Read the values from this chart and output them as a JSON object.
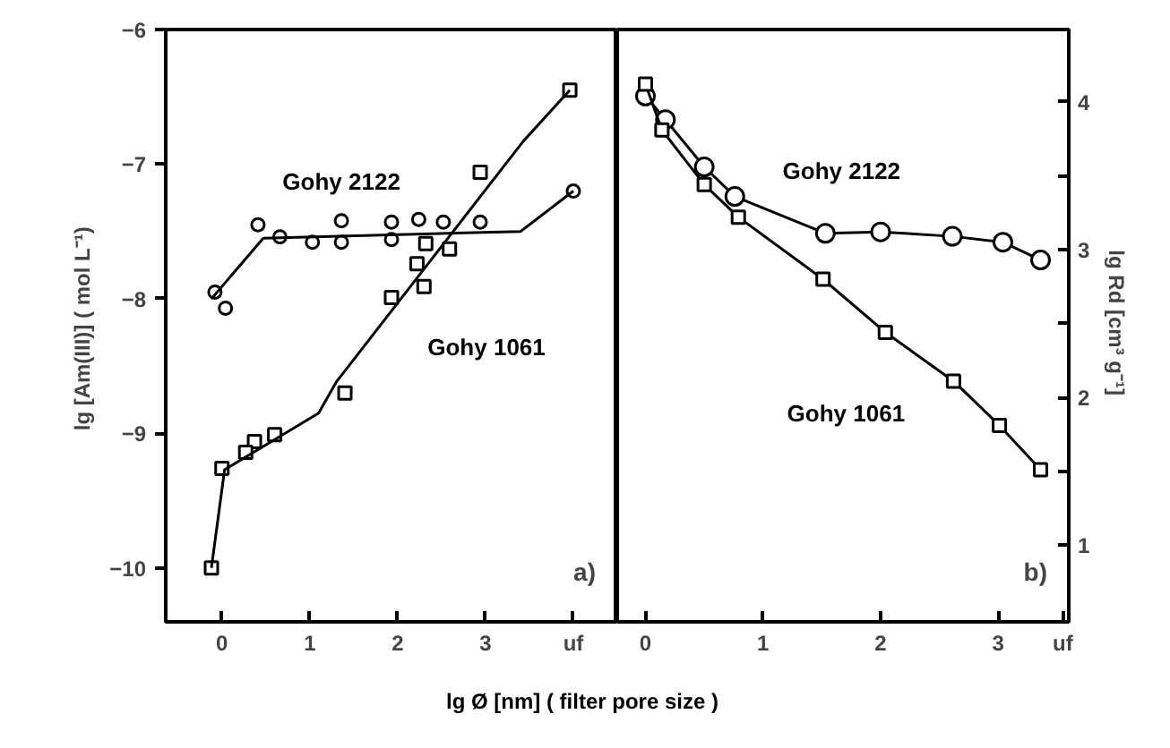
{
  "chart_data": [
    {
      "type": "scatter",
      "ylabel": "lg [Am(III)]  ( mol L⁻¹)",
      "xlabel": "lg Ø  [nm]   ( filter pore size )",
      "xlim": [
        -0.64,
        4.5
      ],
      "xticks": [
        0,
        1,
        2,
        3,
        {
          "value": 4,
          "label": "uf"
        }
      ],
      "ylim": [
        -10.4,
        -6.0
      ],
      "yticks": [
        -10,
        -9,
        -8,
        -7,
        -6
      ],
      "grid": false,
      "annotations": [
        "a)"
      ],
      "series": [
        {
          "name": "Gohy 2122",
          "color": "#000000",
          "marker": "circle",
          "x": [
            -0.08,
            0.04,
            0.41,
            0.66,
            1.03,
            1.36,
            1.36,
            1.93,
            1.93,
            2.24,
            2.52,
            2.94,
            4.0
          ],
          "values": [
            -7.95,
            -8.07,
            -7.45,
            -7.54,
            -7.58,
            -7.42,
            -7.58,
            -7.43,
            -7.56,
            -7.41,
            -7.43,
            -7.43,
            -7.2
          ]
        },
        {
          "name": "Gohy 1061",
          "color": "#000000",
          "marker": "square",
          "x": [
            3.96,
            2.94,
            2.32,
            2.59,
            2.22,
            2.3,
            1.93,
            1.4,
            0.6,
            0.37,
            0.27,
            0.0,
            -0.12
          ],
          "values": [
            -6.45,
            -7.06,
            -7.59,
            -7.63,
            -7.74,
            -7.91,
            -7.99,
            -8.7,
            -9.01,
            -9.06,
            -9.14,
            -9.26,
            -10.0
          ]
        },
        {
          "type": "line",
          "color": "#000000",
          "marker": "none",
          "x": [
            -0.12,
            0.47,
            3.4,
            4.0
          ],
          "values": [
            -8.0,
            -7.55,
            -7.5,
            -7.2
          ]
        },
        {
          "type": "line",
          "color": "#000000",
          "marker": "none",
          "x": [
            -0.12,
            0.03,
            1.1,
            1.3,
            3.43,
            3.96
          ],
          "values": [
            -10.0,
            -9.27,
            -8.85,
            -8.62,
            -6.83,
            -6.45
          ]
        }
      ]
    },
    {
      "type": "line",
      "y2label": "lg Rd  [cm³ g⁻¹]",
      "xlim": [
        -0.24,
        3.6
      ],
      "xticks": [
        0,
        1,
        2,
        3,
        {
          "value": 3.55,
          "label": "uf"
        }
      ],
      "y2lim": [
        0.48,
        4.49
      ],
      "y2ticks": [
        1,
        {
          "value": 1.5,
          "label": null
        },
        2,
        {
          "value": 2.5,
          "label": null
        },
        3,
        {
          "value": 3.5,
          "label": null
        },
        4
      ],
      "grid": false,
      "annotations": [
        "b)"
      ],
      "series": [
        {
          "name": "Gohy 2122",
          "color": "#000000",
          "marker": "circle",
          "axis": "y2",
          "x": [
            0.0,
            0.17,
            0.5,
            0.76,
            1.53,
            2.0,
            2.61,
            3.04,
            3.36
          ],
          "values": [
            4.04,
            3.88,
            3.56,
            3.36,
            3.11,
            3.12,
            3.09,
            3.05,
            2.93
          ]
        },
        {
          "name": "Gohy 1061",
          "color": "#000000",
          "marker": "square",
          "axis": "y2",
          "x": [
            0.0,
            0.14,
            0.5,
            0.79,
            1.51,
            2.04,
            2.62,
            3.01,
            3.36
          ],
          "values": [
            4.12,
            3.81,
            3.44,
            3.22,
            2.8,
            2.44,
            2.11,
            1.81,
            1.51
          ]
        }
      ]
    }
  ]
}
